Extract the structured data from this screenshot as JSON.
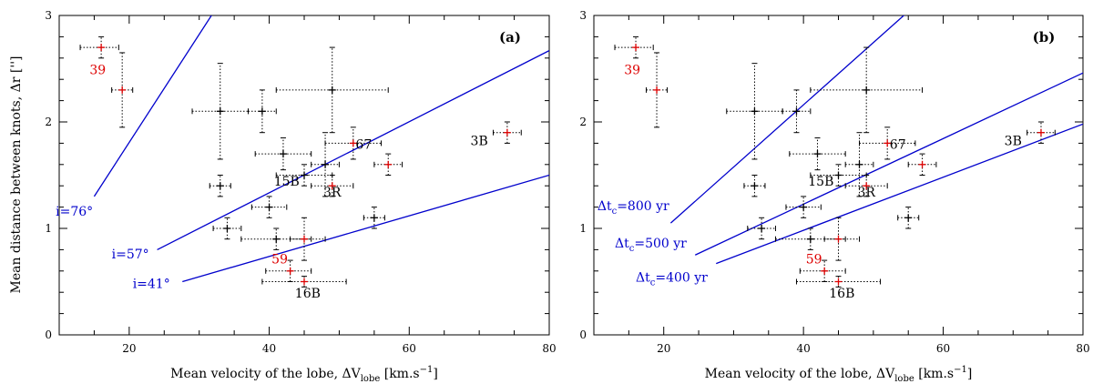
{
  "colors": {
    "line": "#0000cc",
    "highlight": "#dd0000",
    "point": "#000000",
    "frame": "#000000"
  },
  "axes": {
    "ylabel": "Mean distance between knots, Δr ['']",
    "xlabel_main": "Mean velocity of the lobe, ΔV",
    "xlabel_sub": "lobe",
    "xlabel_unit": " [km.s",
    "xlabel_exp": "−1",
    "xlabel_close": "]"
  },
  "chart_data": [
    {
      "type": "scatter",
      "panel": "(a)",
      "xlim": [
        10,
        80
      ],
      "ylim": [
        0,
        3
      ],
      "xticks": [
        20,
        40,
        60,
        80
      ],
      "yticks": [
        0,
        1,
        2,
        3
      ],
      "xlabel": "Mean velocity of the lobe, ΔV_lobe [km.s^-1]",
      "ylabel": "Mean distance between knots, Δr ['']",
      "lines": [
        {
          "label": "i=76°",
          "x": [
            15,
            35
          ],
          "y": [
            1.3,
            3.33
          ],
          "label_x": 9.5,
          "label_y": 1.12
        },
        {
          "label": "i=57°",
          "x": [
            24,
            80
          ],
          "y": [
            0.8,
            2.67
          ],
          "label_x": 17.5,
          "label_y": 0.72
        },
        {
          "label": "i=41°",
          "x": [
            27.6,
            80
          ],
          "y": [
            0.5,
            1.5
          ],
          "label_x": 20.5,
          "label_y": 0.44
        }
      ]
    },
    {
      "type": "scatter",
      "panel": "(b)",
      "xlim": [
        10,
        80
      ],
      "ylim": [
        0,
        3
      ],
      "xticks": [
        20,
        40,
        60,
        80
      ],
      "yticks": [
        0,
        1,
        2,
        3
      ],
      "xlabel": "Mean velocity of the lobe, ΔV_lobe [km.s^-1]",
      "ylabel": "Mean distance between knots, Δr ['']",
      "lines": [
        {
          "label": "Δt",
          "sub": "c",
          "value": "=800 yr",
          "x": [
            21,
            60
          ],
          "y": [
            1.05,
            3.33
          ],
          "label_x": 10.5,
          "label_y": 1.17
        },
        {
          "label": "Δt",
          "sub": "c",
          "value": "=500 yr",
          "x": [
            24.5,
            80
          ],
          "y": [
            0.75,
            2.46
          ],
          "label_x": 13,
          "label_y": 0.82
        },
        {
          "label": "Δt",
          "sub": "c",
          "value": "=400 yr",
          "x": [
            27.5,
            80
          ],
          "y": [
            0.67,
            1.98
          ],
          "label_x": 16,
          "label_y": 0.5
        }
      ]
    }
  ],
  "points": [
    {
      "x": 16,
      "y": 2.7,
      "xerr": [
        13,
        18.5
      ],
      "yerr": [
        2.6,
        2.8
      ],
      "red": true
    },
    {
      "x": 19,
      "y": 2.3,
      "xerr": [
        17.5,
        20.5
      ],
      "yerr": [
        1.95,
        2.65
      ],
      "red": true
    },
    {
      "x": 33,
      "y": 2.1,
      "xerr": [
        29,
        37
      ],
      "yerr": [
        1.65,
        2.55
      ],
      "red": false
    },
    {
      "x": 39,
      "y": 2.1,
      "xerr": [
        37,
        41
      ],
      "yerr": [
        1.9,
        2.3
      ],
      "red": false
    },
    {
      "x": 49,
      "y": 2.3,
      "xerr": [
        41,
        57
      ],
      "yerr": [
        1.9,
        2.7
      ],
      "red": false
    },
    {
      "x": 42,
      "y": 1.7,
      "xerr": [
        38,
        46
      ],
      "yerr": [
        1.55,
        1.85
      ],
      "red": false
    },
    {
      "x": 33,
      "y": 1.4,
      "xerr": [
        31.5,
        34.5
      ],
      "yerr": [
        1.3,
        1.5
      ],
      "red": false
    },
    {
      "x": 40,
      "y": 1.2,
      "xerr": [
        37.5,
        42.5
      ],
      "yerr": [
        1.1,
        1.3
      ],
      "red": false
    },
    {
      "x": 34,
      "y": 1.0,
      "xerr": [
        32,
        36
      ],
      "yerr": [
        0.9,
        1.1
      ],
      "red": false
    },
    {
      "x": 41,
      "y": 0.9,
      "xerr": [
        36,
        46
      ],
      "yerr": [
        0.8,
        1.0
      ],
      "red": false
    },
    {
      "x": 45,
      "y": 0.9,
      "xerr": [
        43,
        48
      ],
      "yerr": [
        0.7,
        1.1
      ],
      "red": true
    },
    {
      "x": 45,
      "y": 1.5,
      "xerr": [
        41,
        49
      ],
      "yerr": [
        1.4,
        1.6
      ],
      "red": false
    },
    {
      "x": 48,
      "y": 1.6,
      "xerr": [
        46,
        50
      ],
      "yerr": [
        1.3,
        1.9
      ],
      "red": false
    },
    {
      "x": 52,
      "y": 1.8,
      "xerr": [
        48,
        56
      ],
      "yerr": [
        1.65,
        1.95
      ],
      "red": true
    },
    {
      "x": 49,
      "y": 1.4,
      "xerr": [
        46,
        52
      ],
      "yerr": [
        1.3,
        1.5
      ],
      "red": true
    },
    {
      "x": 57,
      "y": 1.6,
      "xerr": [
        55,
        59
      ],
      "yerr": [
        1.5,
        1.7
      ],
      "red": true
    },
    {
      "x": 55,
      "y": 1.1,
      "xerr": [
        53.5,
        56.5
      ],
      "yerr": [
        1.0,
        1.2
      ],
      "red": false
    },
    {
      "x": 43,
      "y": 0.6,
      "xerr": [
        39.5,
        46
      ],
      "yerr": [
        0.5,
        0.7
      ],
      "red": true
    },
    {
      "x": 45,
      "y": 0.5,
      "xerr": [
        39,
        51
      ],
      "yerr": [
        0.45,
        0.55
      ],
      "red": true
    },
    {
      "x": 74,
      "y": 1.9,
      "xerr": [
        72,
        76
      ],
      "yerr": [
        1.8,
        2.0
      ],
      "red": true
    }
  ],
  "point_labels": [
    {
      "text": "39",
      "x": 15.5,
      "y": 2.45,
      "red": true
    },
    {
      "text": "59",
      "x": 41.5,
      "y": 0.67,
      "red": true
    },
    {
      "text": "67",
      "x": 53.5,
      "y": 1.75,
      "red": false
    },
    {
      "text": "15B",
      "x": 42.5,
      "y": 1.4,
      "red": false
    },
    {
      "text": "3R",
      "x": 49,
      "y": 1.3,
      "red": false
    },
    {
      "text": "16B",
      "x": 45.5,
      "y": 0.35,
      "red": false
    },
    {
      "text": "3B",
      "x": 70,
      "y": 1.78,
      "red": false
    }
  ]
}
